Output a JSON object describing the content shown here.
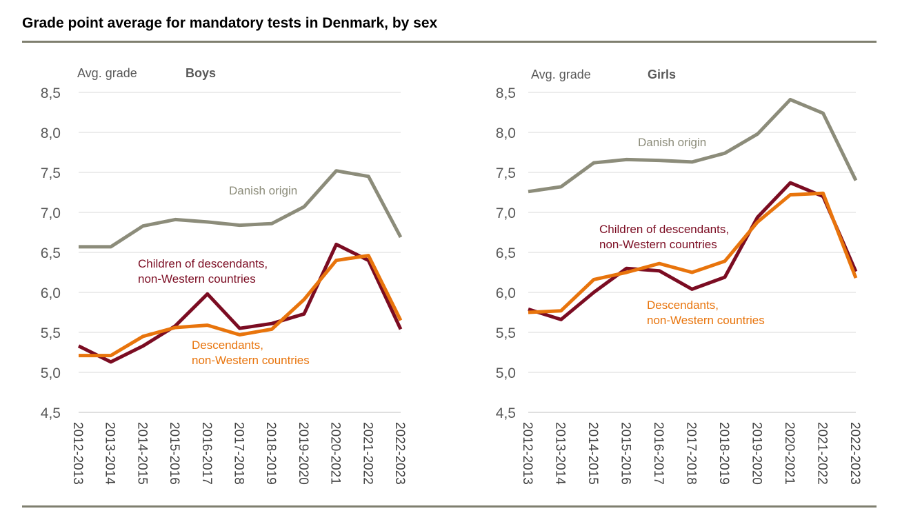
{
  "title": "Grade point average for mandatory tests in Denmark, by sex",
  "colors": {
    "danish_origin": "#8c8c7a",
    "children_of_descendants": "#7b0c22",
    "descendants": "#e8740c",
    "grid": "#d9d9d9",
    "rule": "#7f7f6f"
  },
  "chart_data": [
    {
      "type": "line",
      "title": "Boys",
      "ylabel": "Avg. grade",
      "ylim": [
        4.5,
        8.5
      ],
      "yticks": [
        "4,5",
        "5,0",
        "5,5",
        "6,0",
        "6,5",
        "7,0",
        "7,5",
        "8,0",
        "8,5"
      ],
      "categories": [
        "2012-2013",
        "2013-2014",
        "2014-2015",
        "2015-2016",
        "2016-2017",
        "2017-2018",
        "2018-2019",
        "2019-2020",
        "2020-2021",
        "2021-2022",
        "2022-2023"
      ],
      "grid": true,
      "series": [
        {
          "name": "Danish origin",
          "color": "#8c8c7a",
          "values": [
            6.57,
            6.57,
            6.83,
            6.91,
            6.88,
            6.84,
            6.86,
            7.07,
            7.52,
            7.45,
            6.69
          ]
        },
        {
          "name": "Children of descendants, non-Western countries",
          "color": "#7b0c22",
          "values": [
            5.33,
            5.13,
            5.33,
            5.58,
            5.98,
            5.55,
            5.61,
            5.73,
            6.6,
            6.4,
            5.54
          ]
        },
        {
          "name": "Descendants, non-Western countries",
          "color": "#e8740c",
          "values": [
            5.21,
            5.21,
            5.45,
            5.56,
            5.59,
            5.47,
            5.54,
            5.91,
            6.4,
            6.46,
            5.65
          ]
        }
      ],
      "labels": [
        {
          "series": 0,
          "lines": [
            "Danish origin"
          ]
        },
        {
          "series": 1,
          "lines": [
            "Children of descendants,",
            "non-Western countries"
          ]
        },
        {
          "series": 2,
          "lines": [
            "Descendants,",
            "non-Western countries"
          ]
        }
      ]
    },
    {
      "type": "line",
      "title": "Girls",
      "ylabel": "Avg. grade",
      "ylim": [
        4.5,
        8.5
      ],
      "yticks": [
        "4,5",
        "5,0",
        "5,5",
        "6,0",
        "6,5",
        "7,0",
        "7,5",
        "8,0",
        "8,5"
      ],
      "categories": [
        "2012-2013",
        "2013-2014",
        "2014-2015",
        "2015-2016",
        "2016-2017",
        "2017-2018",
        "2018-2019",
        "2019-2020",
        "2020-2021",
        "2021-2022",
        "2022-2023"
      ],
      "grid": true,
      "series": [
        {
          "name": "Danish origin",
          "color": "#8c8c7a",
          "values": [
            7.26,
            7.32,
            7.62,
            7.66,
            7.65,
            7.63,
            7.74,
            7.98,
            8.41,
            8.24,
            7.4
          ]
        },
        {
          "name": "Children of descendants, non-Western countries",
          "color": "#7b0c22",
          "values": [
            5.79,
            5.66,
            6.0,
            6.3,
            6.27,
            6.04,
            6.19,
            6.94,
            7.37,
            7.2,
            6.26
          ]
        },
        {
          "name": "Descendants, non-Western countries",
          "color": "#e8740c",
          "values": [
            5.75,
            5.77,
            6.16,
            6.25,
            6.36,
            6.25,
            6.39,
            6.88,
            7.22,
            7.24,
            6.18
          ]
        }
      ],
      "labels": [
        {
          "series": 0,
          "lines": [
            "Danish origin"
          ]
        },
        {
          "series": 1,
          "lines": [
            "Children of descendants,",
            "non-Western countries"
          ]
        },
        {
          "series": 2,
          "lines": [
            "Descendants,",
            "non-Western countries"
          ]
        }
      ]
    }
  ]
}
